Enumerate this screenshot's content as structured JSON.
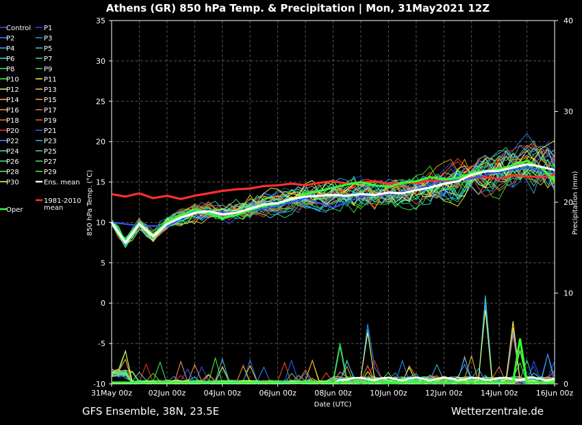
{
  "header": {
    "title": "Athens  (GR)  850 hPa Temp. & Precipitation | Mon, 31May2021 12Z"
  },
  "footer": {
    "left": "GFS Ensemble, 38N, 23.5E",
    "right": "Wetterzentrale.de"
  },
  "colors": {
    "background": "#000000",
    "ens_mean": "#ffffff",
    "climate_mean": "#ff3030",
    "oper": "#33ff33",
    "grid": "#555555"
  },
  "chart_data": {
    "type": "line",
    "xlabel": "Date (UTC)",
    "ylabel": "850 hPa Temp. (°C)",
    "y2label": "Precipitation (mm)",
    "x_range": [
      "31May 00z",
      "16Jun 00z"
    ],
    "x_ticks": [
      "31May 00z",
      "02Jun 00z",
      "04Jun 00z",
      "06Jun 00z",
      "08Jun 00z",
      "10Jun 00z",
      "12Jun 00z",
      "14Jun 00z",
      "16Jun 00z"
    ],
    "ylim": [
      -10,
      35
    ],
    "y_ticks": [
      35,
      30,
      25,
      20,
      15,
      10,
      5,
      0,
      -5,
      -10
    ],
    "y2lim": [
      0,
      40
    ],
    "y2_ticks": [
      40,
      30,
      20,
      10,
      0
    ],
    "grid": true,
    "legend_position": "left",
    "legend": [
      {
        "label": "Control",
        "color": "#3355ff"
      },
      {
        "label": "P1",
        "color": "#2244ff"
      },
      {
        "label": "P2",
        "color": "#3388ff"
      },
      {
        "label": "P3",
        "color": "#2299ff"
      },
      {
        "label": "P4",
        "color": "#33aaff"
      },
      {
        "label": "P5",
        "color": "#33ccee"
      },
      {
        "label": "P6",
        "color": "#33ddcc"
      },
      {
        "label": "P7",
        "color": "#33ddaa"
      },
      {
        "label": "P8",
        "color": "#33ee88"
      },
      {
        "label": "P9",
        "color": "#33ee55"
      },
      {
        "label": "P10",
        "color": "#44ff22"
      },
      {
        "label": "P11",
        "color": "#ffff33"
      },
      {
        "label": "P12",
        "color": "#ffee66"
      },
      {
        "label": "P13",
        "color": "#ffcc33"
      },
      {
        "label": "P14",
        "color": "#ffbb33"
      },
      {
        "label": "P15",
        "color": "#ffaa22"
      },
      {
        "label": "P16",
        "color": "#ff9955"
      },
      {
        "label": "P17",
        "color": "#ff7744"
      },
      {
        "label": "P18",
        "color": "#ff6633"
      },
      {
        "label": "P19",
        "color": "#ff5522"
      },
      {
        "label": "P20",
        "color": "#ff3333"
      },
      {
        "label": "P21",
        "color": "#3366ff"
      },
      {
        "label": "P22",
        "color": "#3399ff"
      },
      {
        "label": "P23",
        "color": "#33bbff"
      },
      {
        "label": "P24",
        "color": "#44dddd"
      },
      {
        "label": "P25",
        "color": "#33ddbb"
      },
      {
        "label": "P26",
        "color": "#44ee99"
      },
      {
        "label": "P27",
        "color": "#44ee66"
      },
      {
        "label": "P28",
        "color": "#55ff55"
      },
      {
        "label": "P29",
        "color": "#44ff33"
      },
      {
        "label": "P30",
        "color": "#ffff55"
      },
      {
        "label": "Ens. mean",
        "color": "#ffffff"
      },
      {
        "label": "1981-2010 mean",
        "color": "#ff3030"
      },
      {
        "label": "Oper",
        "color": "#33ff33"
      }
    ],
    "series": [
      {
        "name": "Ens. mean",
        "x_days": [
          0,
          0.5,
          1,
          1.5,
          2,
          2.5,
          3,
          3.5,
          4,
          4.5,
          5,
          5.5,
          6,
          6.5,
          7,
          7.5,
          8,
          8.5,
          9,
          9.5,
          10,
          10.5,
          11,
          11.5,
          12,
          12.5,
          13,
          13.5,
          14,
          14.5,
          15,
          15.5,
          16
        ],
        "values": [
          10,
          7.5,
          9.8,
          8.3,
          9.8,
          10.6,
          11.2,
          11.4,
          11,
          11.2,
          11.7,
          12.2,
          12.4,
          12.9,
          13.2,
          13.3,
          13.4,
          13.3,
          13.5,
          13.4,
          13.7,
          13.6,
          14,
          14.3,
          14.8,
          15.1,
          15.9,
          16.3,
          16.4,
          16.8,
          17.2,
          16.9,
          16.5
        ]
      },
      {
        "name": "1981-2010 mean",
        "x_days": [
          0,
          0.5,
          1,
          1.5,
          2,
          2.5,
          3,
          3.5,
          4,
          4.5,
          5,
          5.5,
          6,
          6.5,
          7,
          7.5,
          8,
          8.5,
          9,
          9.5,
          10,
          10.5,
          11,
          11.5,
          12,
          12.5,
          13,
          13.5,
          14,
          14.5,
          15,
          15.5,
          16
        ],
        "values": [
          13.5,
          13.2,
          13.6,
          13,
          13.3,
          12.9,
          13.3,
          13.6,
          13.9,
          14.1,
          14.2,
          14.5,
          14.6,
          14.8,
          14.6,
          14.9,
          15.1,
          14.8,
          14.9,
          15.1,
          14.8,
          14.9,
          14.9,
          15.2,
          15.1,
          15.4,
          15.5,
          15.6,
          15.4,
          15.8,
          15.7,
          15.6,
          15.9
        ]
      },
      {
        "name": "Oper",
        "x_days": [
          0,
          0.5,
          1,
          1.5,
          2,
          2.5,
          3,
          3.5,
          4,
          4.5,
          5,
          5.5,
          6,
          6.5,
          7,
          7.5,
          8,
          8.5,
          9,
          9.5,
          10,
          10.5,
          11,
          11.5,
          12,
          12.5,
          13,
          13.5,
          14,
          14.5,
          15,
          15.5,
          16
        ],
        "values": [
          10,
          7.8,
          10,
          8.4,
          10.1,
          10.9,
          11.6,
          11.2,
          10.5,
          10.9,
          11.5,
          12.1,
          12.3,
          12.8,
          13.5,
          13.9,
          14.3,
          14.7,
          15,
          14.6,
          14.4,
          14.9,
          15.1,
          15.6,
          15.3,
          15.5,
          16.1,
          16.4,
          16.6,
          17.1,
          17.6,
          16.8,
          15.2
        ]
      },
      {
        "name": "Control",
        "x_days": [
          0,
          1,
          2,
          3,
          4,
          5,
          6,
          7,
          8,
          9,
          10,
          11,
          12,
          13,
          14,
          15,
          16
        ],
        "values": [
          10,
          9.6,
          9.5,
          11.5,
          11.2,
          11.4,
          12,
          13,
          11.8,
          13.2,
          13.5,
          14.1,
          15.2,
          15.4,
          16.3,
          16.8,
          16.1
        ]
      }
    ],
    "ensemble_members_count": 30,
    "precipitation": {
      "unit": "mm",
      "peaks": [
        {
          "x_day": 8.3,
          "value": 5
        },
        {
          "x_day": 9.3,
          "value": 7.3
        },
        {
          "x_day": 13.6,
          "value": 10.5
        },
        {
          "x_day": 14.4,
          "value": 7.5
        },
        {
          "x_day": 14.8,
          "value": 5
        }
      ]
    }
  }
}
